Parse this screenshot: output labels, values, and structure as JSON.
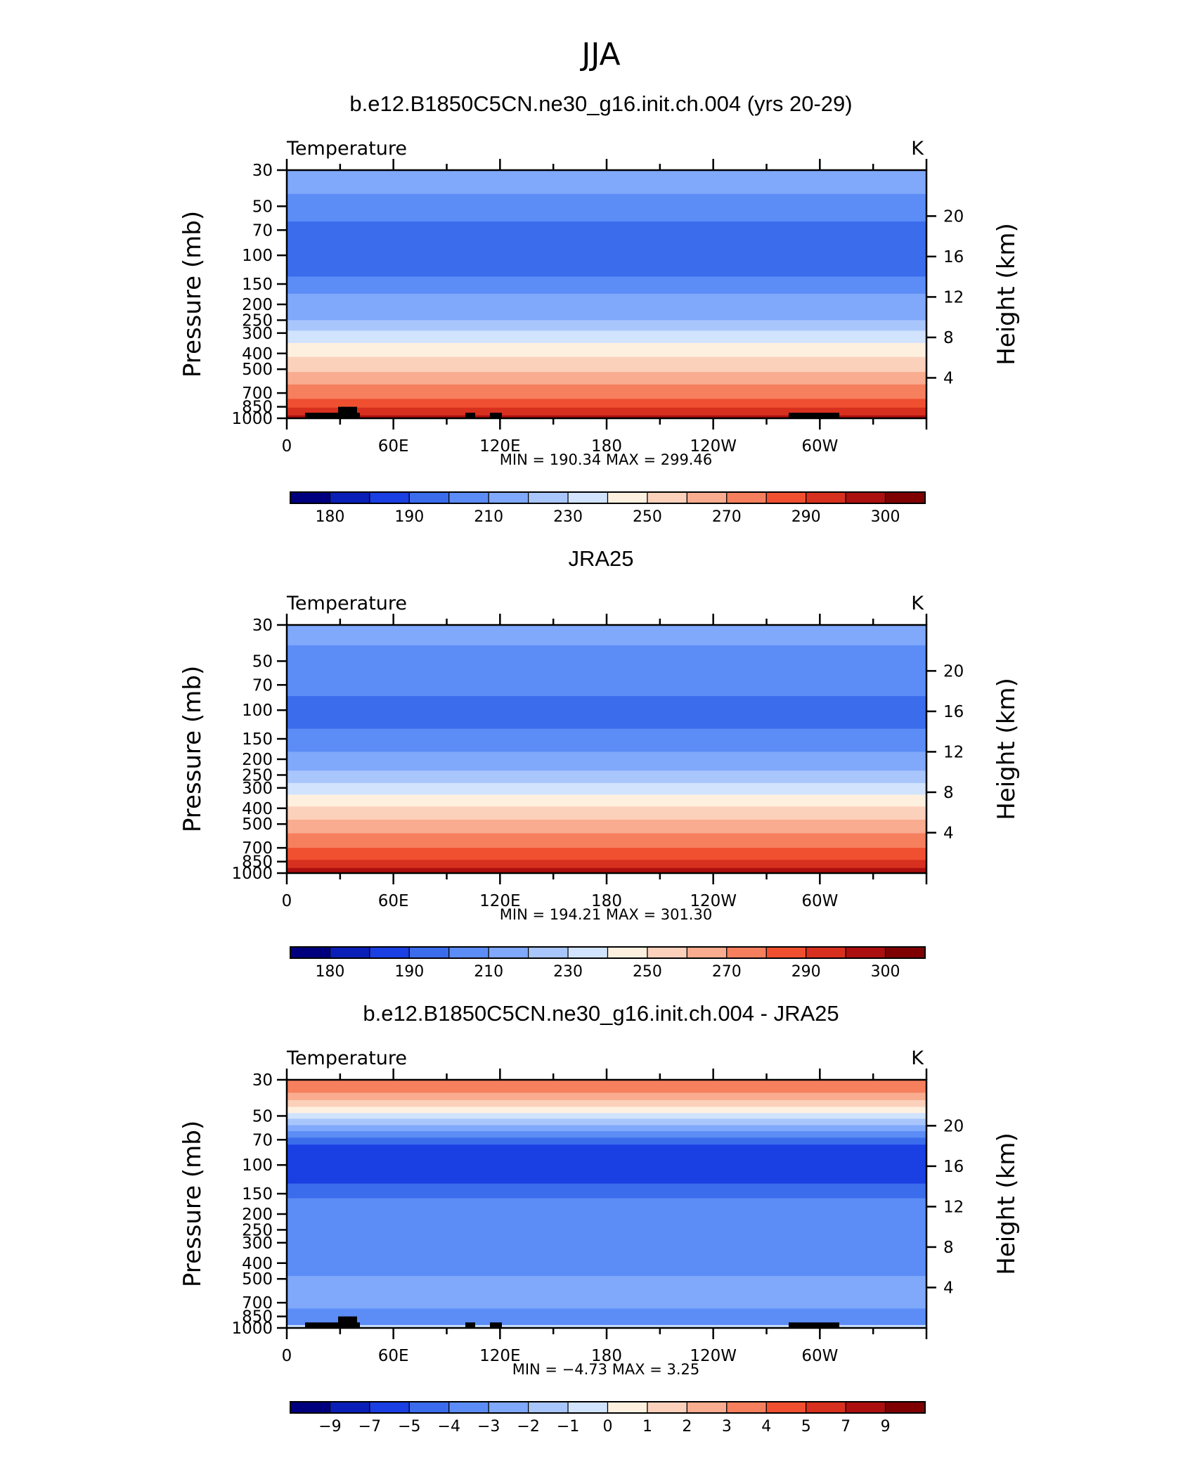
{
  "figure_title": "JJA",
  "colors": {
    "temp_scale": [
      "#00007F",
      "#0A1FB7",
      "#1A3FE2",
      "#3A6CEC",
      "#5C8DF6",
      "#80A8FB",
      "#A9C6FC",
      "#D1E3FD",
      "#FEF0DF",
      "#FCD1BC",
      "#F9AC8F",
      "#F67F5E",
      "#F05030",
      "#D7301F",
      "#AC0F0F",
      "#7F0000"
    ],
    "land_mask": "#000000"
  },
  "chart_data": [
    {
      "type": "heatmap",
      "title": "b.e12.B1850C5CN.ne30_g16.init.ch.004 (yrs 20-29)",
      "left_label": "Temperature",
      "right_label": "K",
      "ylabel": "Pressure  (mb)",
      "ylabel_right": "Height  (km)",
      "x_ticks": [
        "0",
        "60E",
        "120E",
        "180",
        "120W",
        "60W"
      ],
      "y_ticks": [
        "30",
        "50",
        "70",
        "100",
        "150",
        "200",
        "250",
        "300",
        "400",
        "500",
        "700",
        "850",
        "1000"
      ],
      "y2_ticks": [
        "20",
        "16",
        "12",
        "8",
        "4"
      ],
      "stats": "MIN =  190.34   MAX =  299.46",
      "colorbar_labels": [
        "180",
        "190",
        "210",
        "230",
        "250",
        "270",
        "290",
        "300"
      ],
      "band_boundaries_mb": [
        30,
        42,
        62,
        135,
        172,
        250,
        290,
        345,
        420,
        520,
        620,
        760,
        860,
        960,
        1000
      ],
      "band_color_index": [
        5,
        4,
        3,
        4,
        5,
        6,
        7,
        8,
        9,
        10,
        11,
        12,
        13,
        14
      ],
      "ocean_only": true
    },
    {
      "type": "heatmap",
      "title": "JRA25",
      "left_label": "Temperature",
      "right_label": "K",
      "ylabel": "Pressure  (mb)",
      "ylabel_right": "Height  (km)",
      "x_ticks": [
        "0",
        "60E",
        "120E",
        "180",
        "120W",
        "60W"
      ],
      "y_ticks": [
        "30",
        "50",
        "70",
        "100",
        "150",
        "200",
        "250",
        "300",
        "400",
        "500",
        "700",
        "850",
        "1000"
      ],
      "y2_ticks": [
        "20",
        "16",
        "12",
        "8",
        "4"
      ],
      "stats": "MIN =  194.21   MAX =  301.30",
      "colorbar_labels": [
        "180",
        "190",
        "210",
        "230",
        "250",
        "270",
        "290",
        "300"
      ],
      "band_boundaries_mb": [
        30,
        40,
        82,
        130,
        180,
        235,
        280,
        330,
        390,
        470,
        570,
        700,
        830,
        930,
        1000
      ],
      "band_color_index": [
        5,
        4,
        3,
        4,
        5,
        6,
        7,
        8,
        9,
        10,
        11,
        12,
        13,
        14
      ],
      "ocean_only": false
    },
    {
      "type": "heatmap",
      "title": "b.e12.B1850C5CN.ne30_g16.init.ch.004 - JRA25",
      "left_label": "Temperature",
      "right_label": "K",
      "ylabel": "Pressure  (mb)",
      "ylabel_right": "Height  (km)",
      "x_ticks": [
        "0",
        "60E",
        "120E",
        "180",
        "120W",
        "60W"
      ],
      "y_ticks": [
        "30",
        "50",
        "70",
        "100",
        "150",
        "200",
        "250",
        "300",
        "400",
        "500",
        "700",
        "850",
        "1000"
      ],
      "y2_ticks": [
        "20",
        "16",
        "12",
        "8",
        "4"
      ],
      "stats": "MIN =    −4.73   MAX =    3.25",
      "colorbar_labels": [
        "−9",
        "−7",
        "−5",
        "−4",
        "−3",
        "−2",
        "−1",
        "0",
        "1",
        "2",
        "3",
        "4",
        "5",
        "7",
        "9"
      ],
      "band_boundaries_mb": [
        30,
        36,
        40,
        44,
        48,
        52,
        57,
        62,
        68,
        75,
        130,
        160,
        480,
        760,
        960,
        1000
      ],
      "band_color_index": [
        11,
        10,
        9,
        8,
        7,
        6,
        5,
        4,
        3,
        2,
        3,
        4,
        5,
        4,
        7
      ],
      "ocean_only": true
    }
  ]
}
